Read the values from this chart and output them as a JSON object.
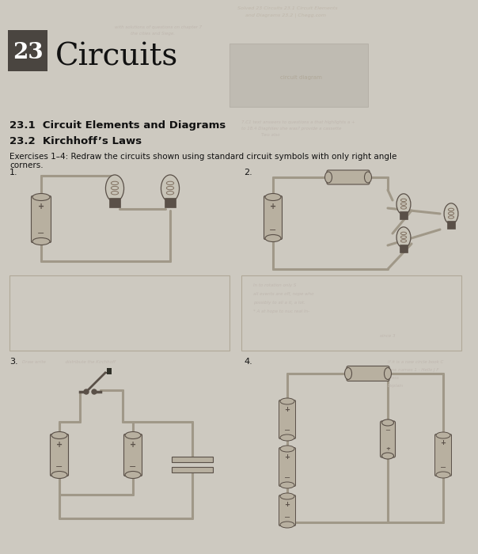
{
  "page_background": "#cdc9c0",
  "title_box_color": "#4a4540",
  "title_text": "Circuits",
  "chapter_num": "23",
  "section1": "23.1  Circuit Elements and Diagrams",
  "section2": "23.2  Kirchhoff’s Laws",
  "exercise_text": "Exercises 1–4: Redraw the circuits shown using standard circuit symbols with only right angle corners.",
  "wire_color": "#a09888",
  "battery_color": "#b8b0a0",
  "bulb_globe_color": "#c8c4b8",
  "component_dark": "#5a5048",
  "text_color": "#111111",
  "box_line_color": "#aaa498",
  "faint_color": "#b0a898"
}
